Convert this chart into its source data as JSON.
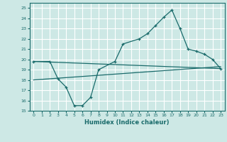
{
  "xlabel": "Humidex (Indice chaleur)",
  "ylabel": "",
  "bg_color": "#cde8e5",
  "line_color": "#1a6b6b",
  "grid_color": "#ffffff",
  "xlim": [
    -0.5,
    23.5
  ],
  "ylim": [
    15,
    25.5
  ],
  "xticks": [
    0,
    1,
    2,
    3,
    4,
    5,
    6,
    7,
    8,
    9,
    10,
    11,
    12,
    13,
    14,
    15,
    16,
    17,
    18,
    19,
    20,
    21,
    22,
    23
  ],
  "yticks": [
    15,
    16,
    17,
    18,
    19,
    20,
    21,
    22,
    23,
    24,
    25
  ],
  "main_x": [
    0,
    2,
    3,
    4,
    5,
    6,
    7,
    8,
    10,
    11,
    13,
    14,
    15,
    16,
    17,
    18,
    19,
    20,
    21,
    22,
    23
  ],
  "main_y": [
    19.8,
    19.8,
    18.1,
    17.3,
    15.5,
    15.5,
    16.3,
    19.0,
    19.8,
    21.5,
    22.0,
    22.5,
    23.3,
    24.1,
    24.8,
    23.0,
    21.0,
    20.8,
    20.5,
    20.0,
    19.1
  ],
  "line2_x": [
    0,
    23
  ],
  "line2_y": [
    19.8,
    19.1
  ],
  "line3_x": [
    0,
    23
  ],
  "line3_y": [
    18.0,
    19.3
  ]
}
